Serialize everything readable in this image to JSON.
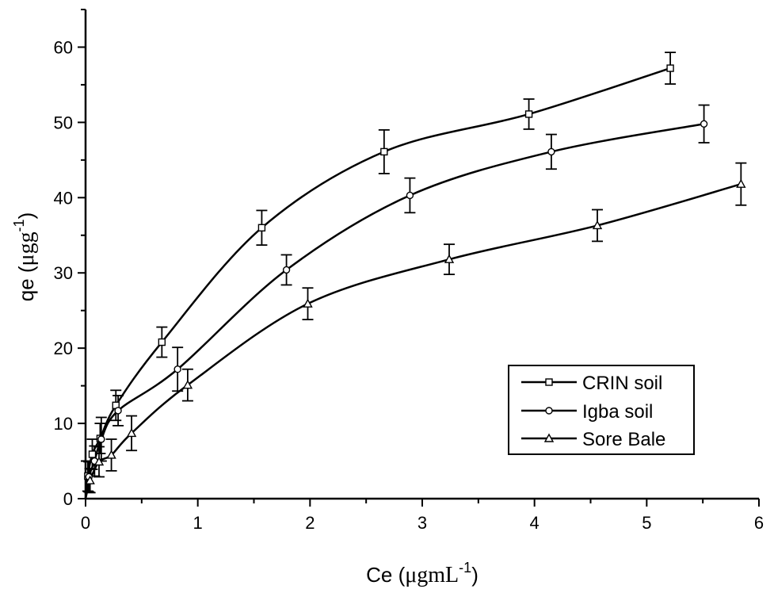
{
  "chart_data": {
    "type": "scatter",
    "xlabel": {
      "main": "Ce (",
      "unit": "μgmL",
      "sup": "-1",
      "close": ")"
    },
    "ylabel": {
      "main": "qe (",
      "unit": "μgg",
      "sup": "-1",
      "close": ")"
    },
    "xlim": [
      0,
      6
    ],
    "ylim": [
      0,
      65
    ],
    "xticks": [
      0,
      1,
      2,
      3,
      4,
      5,
      6
    ],
    "yticks": [
      0,
      10,
      20,
      30,
      40,
      50,
      60
    ],
    "grid": false,
    "legend_position": "lower-right",
    "series": [
      {
        "name": "CRIN soil",
        "marker": "square",
        "points": [
          {
            "x": 0.02,
            "y": 3.0,
            "err": 2.0
          },
          {
            "x": 0.06,
            "y": 5.9,
            "err": 2.0
          },
          {
            "x": 0.13,
            "y": 8.0,
            "err": 2.0
          },
          {
            "x": 0.27,
            "y": 12.4,
            "err": 2.0
          },
          {
            "x": 0.68,
            "y": 20.8,
            "err": 2.0
          },
          {
            "x": 1.57,
            "y": 36.0,
            "err": 2.3
          },
          {
            "x": 2.66,
            "y": 46.1,
            "err": 2.9
          },
          {
            "x": 3.95,
            "y": 51.1,
            "err": 2.0
          },
          {
            "x": 5.21,
            "y": 57.2,
            "err": 2.1
          }
        ]
      },
      {
        "name": "Igba soil",
        "marker": "circle",
        "points": [
          {
            "x": 0.03,
            "y": 2.9,
            "err": 2.0
          },
          {
            "x": 0.08,
            "y": 5.0,
            "err": 2.0
          },
          {
            "x": 0.14,
            "y": 7.9,
            "err": 2.9
          },
          {
            "x": 0.29,
            "y": 11.7,
            "err": 2.0
          },
          {
            "x": 0.82,
            "y": 17.2,
            "err": 2.9
          },
          {
            "x": 1.79,
            "y": 30.4,
            "err": 2.0
          },
          {
            "x": 2.89,
            "y": 40.3,
            "err": 2.3
          },
          {
            "x": 4.15,
            "y": 46.1,
            "err": 2.3
          },
          {
            "x": 5.51,
            "y": 49.8,
            "err": 2.5
          }
        ]
      },
      {
        "name": "Sore Bale",
        "marker": "triangle",
        "points": [
          {
            "x": 0.04,
            "y": 2.4,
            "err": 1.6
          },
          {
            "x": 0.12,
            "y": 4.9,
            "err": 2.0
          },
          {
            "x": 0.23,
            "y": 5.8,
            "err": 2.1
          },
          {
            "x": 0.41,
            "y": 8.7,
            "err": 2.3
          },
          {
            "x": 0.91,
            "y": 15.1,
            "err": 2.1
          },
          {
            "x": 1.98,
            "y": 25.9,
            "err": 2.1
          },
          {
            "x": 3.24,
            "y": 31.8,
            "err": 2.0
          },
          {
            "x": 4.56,
            "y": 36.3,
            "err": 2.1
          },
          {
            "x": 5.84,
            "y": 41.8,
            "err": 2.8
          }
        ]
      }
    ]
  }
}
